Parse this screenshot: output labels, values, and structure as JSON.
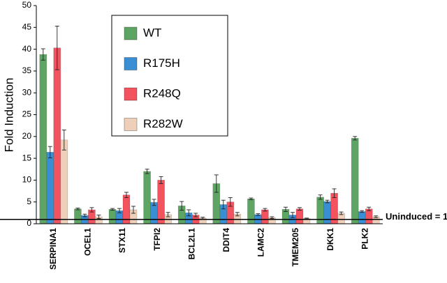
{
  "chart_data": {
    "type": "bar",
    "y_label": "Fold Induction",
    "categories": [
      "SERPINA1",
      "OCEL1",
      "STX11",
      "TFPI2",
      "BCL2L1",
      "DDIT4",
      "LAMC2",
      "TMEM205",
      "DKK1",
      "PLK2"
    ],
    "series": [
      {
        "name": "WT",
        "color": "#5ea563",
        "values": [
          38.8,
          3.4,
          3.3,
          12.0,
          4.1,
          9.2,
          5.7,
          3.3,
          6.1,
          19.6
        ],
        "errors": [
          1.3,
          0.2,
          0.2,
          0.5,
          1.0,
          2.0,
          0.2,
          0.5,
          0.5,
          0.4
        ]
      },
      {
        "name": "R175H",
        "color": "#3a8ed3",
        "values": [
          16.4,
          1.9,
          3.0,
          4.9,
          2.5,
          4.4,
          2.1,
          2.0,
          5.1,
          2.8
        ],
        "errors": [
          1.3,
          0.3,
          0.5,
          0.7,
          0.7,
          1.0,
          0.2,
          0.6,
          0.3,
          0.2
        ]
      },
      {
        "name": "R248Q",
        "color": "#f2535f",
        "values": [
          40.3,
          3.2,
          6.6,
          10.0,
          2.0,
          5.0,
          3.2,
          3.4,
          7.0,
          3.4
        ],
        "errors": [
          5.0,
          0.5,
          0.6,
          0.8,
          0.4,
          1.0,
          0.3,
          0.3,
          1.0,
          0.4
        ]
      },
      {
        "name": "R282W",
        "color": "#eed0ba",
        "values": [
          19.2,
          1.6,
          3.2,
          2.1,
          1.3,
          2.2,
          1.4,
          1.2,
          2.4,
          1.6
        ],
        "errors": [
          2.3,
          0.4,
          0.8,
          0.5,
          0.2,
          0.4,
          0.2,
          0.1,
          0.3,
          0.2
        ]
      }
    ],
    "reference_line": {
      "value": 1,
      "label": "Uninduced = 1"
    },
    "ylim": [
      0,
      50
    ],
    "yticks": [
      0,
      5,
      10,
      15,
      20,
      25,
      30,
      35,
      40,
      45,
      50
    ]
  }
}
